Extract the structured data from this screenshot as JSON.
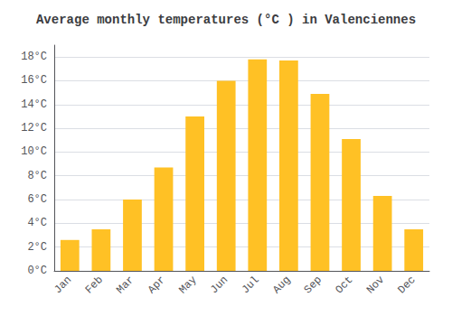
{
  "chart_data": {
    "type": "bar",
    "title": "Average monthly temperatures (°C ) in Valenciennes",
    "categories": [
      "Jan",
      "Feb",
      "Mar",
      "Apr",
      "May",
      "Jun",
      "Jul",
      "Aug",
      "Sep",
      "Oct",
      "Nov",
      "Dec"
    ],
    "values": [
      2.6,
      3.5,
      6.0,
      8.7,
      13.0,
      16.0,
      17.8,
      17.7,
      14.9,
      11.1,
      6.3,
      3.5
    ],
    "color": "#FFC125",
    "ylim": [
      0,
      19
    ],
    "yticks": [
      {
        "value": 0,
        "label": "0°C"
      },
      {
        "value": 2,
        "label": "2°C"
      },
      {
        "value": 4,
        "label": "4°C"
      },
      {
        "value": 6,
        "label": "6°C"
      },
      {
        "value": 8,
        "label": "8°C"
      },
      {
        "value": 10,
        "label": "10°C"
      },
      {
        "value": 12,
        "label": "12°C"
      },
      {
        "value": 14,
        "label": "14°C"
      },
      {
        "value": 16,
        "label": "16°C"
      },
      {
        "value": 18,
        "label": "18°C"
      }
    ],
    "grid": true
  }
}
